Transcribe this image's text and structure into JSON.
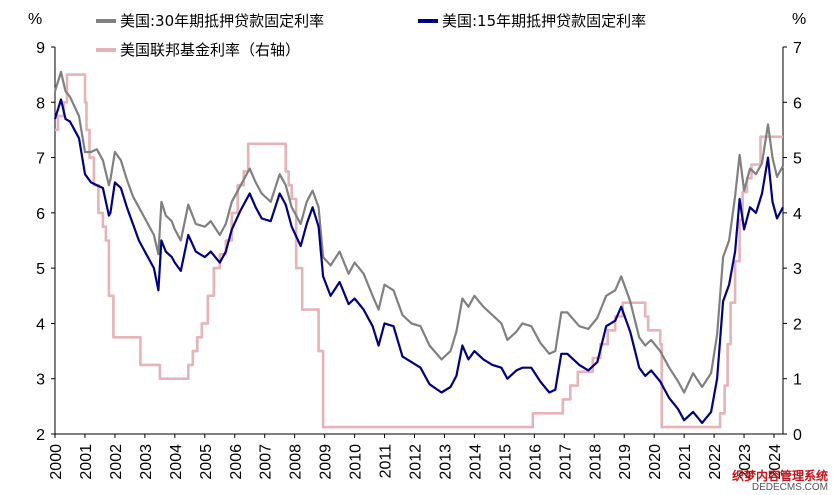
{
  "chart_data": {
    "type": "line",
    "left_unit": "%",
    "right_unit": "%",
    "left_axis": {
      "min": 2,
      "max": 9,
      "ticks": [
        "2",
        "3",
        "4",
        "5",
        "6",
        "7",
        "8",
        "9"
      ]
    },
    "right_axis": {
      "min": 0,
      "max": 7,
      "ticks": [
        "0",
        "1",
        "2",
        "3",
        "4",
        "5",
        "6",
        "7"
      ]
    },
    "x_axis": {
      "min": 2000,
      "max": 2024.3,
      "ticks": [
        "2000",
        "2001",
        "2002",
        "2003",
        "2004",
        "2005",
        "2006",
        "2007",
        "2008",
        "2009",
        "2010",
        "2011",
        "2012",
        "2013",
        "2014",
        "2015",
        "2016",
        "2017",
        "2018",
        "2019",
        "2020",
        "2021",
        "2022",
        "2023",
        "2024"
      ]
    },
    "series": [
      {
        "name": "美国:30年期抵押贷款固定利率",
        "axis": "left",
        "color": "#808080",
        "x": [
          2000.0,
          2000.2,
          2000.35,
          2000.5,
          2000.8,
          2001.0,
          2001.2,
          2001.4,
          2001.6,
          2001.8,
          2001.85,
          2002.0,
          2002.2,
          2002.4,
          2002.6,
          2002.8,
          2003.0,
          2003.3,
          2003.45,
          2003.55,
          2003.7,
          2003.9,
          2004.0,
          2004.2,
          2004.45,
          2004.7,
          2005.0,
          2005.2,
          2005.5,
          2005.7,
          2005.9,
          2006.2,
          2006.5,
          2006.7,
          2006.9,
          2007.2,
          2007.5,
          2007.7,
          2007.9,
          2008.2,
          2008.4,
          2008.6,
          2008.8,
          2008.95,
          2009.2,
          2009.5,
          2009.8,
          2010.0,
          2010.3,
          2010.6,
          2010.8,
          2011.0,
          2011.3,
          2011.6,
          2011.9,
          2012.2,
          2012.5,
          2012.9,
          2013.2,
          2013.4,
          2013.6,
          2013.8,
          2014.0,
          2014.3,
          2014.6,
          2014.9,
          2015.1,
          2015.4,
          2015.6,
          2015.9,
          2016.2,
          2016.5,
          2016.7,
          2016.9,
          2017.1,
          2017.5,
          2017.8,
          2018.1,
          2018.4,
          2018.7,
          2018.9,
          2019.2,
          2019.5,
          2019.7,
          2019.9,
          2020.2,
          2020.5,
          2020.8,
          2021.0,
          2021.3,
          2021.6,
          2021.9,
          2022.1,
          2022.3,
          2022.5,
          2022.7,
          2022.85,
          2023.0,
          2023.2,
          2023.4,
          2023.6,
          2023.8,
          2023.95,
          2024.1,
          2024.3
        ],
        "y": [
          8.2,
          8.55,
          8.2,
          8.1,
          7.75,
          7.1,
          7.1,
          7.15,
          6.95,
          6.5,
          6.6,
          7.1,
          6.95,
          6.6,
          6.3,
          6.1,
          5.9,
          5.6,
          5.25,
          6.2,
          5.95,
          5.85,
          5.7,
          5.5,
          6.15,
          5.8,
          5.75,
          5.85,
          5.6,
          5.8,
          6.2,
          6.5,
          6.8,
          6.55,
          6.35,
          6.2,
          6.7,
          6.5,
          6.1,
          5.8,
          6.2,
          6.4,
          6.1,
          5.2,
          5.05,
          5.3,
          4.9,
          5.1,
          4.9,
          4.5,
          4.25,
          4.7,
          4.6,
          4.15,
          4.0,
          3.95,
          3.6,
          3.35,
          3.5,
          3.85,
          4.45,
          4.3,
          4.5,
          4.3,
          4.15,
          4.0,
          3.7,
          3.85,
          4.0,
          3.95,
          3.65,
          3.45,
          3.5,
          4.2,
          4.2,
          3.95,
          3.9,
          4.1,
          4.5,
          4.6,
          4.85,
          4.4,
          3.75,
          3.6,
          3.7,
          3.5,
          3.2,
          2.95,
          2.75,
          3.1,
          2.85,
          3.1,
          3.8,
          5.2,
          5.5,
          6.3,
          7.05,
          6.4,
          6.8,
          6.7,
          6.9,
          7.6,
          7.0,
          6.65,
          6.85
        ]
      },
      {
        "name": "美国:15年期抵押贷款固定利率",
        "axis": "left",
        "color": "#000080",
        "x": [
          2000.0,
          2000.2,
          2000.35,
          2000.5,
          2000.8,
          2001.0,
          2001.2,
          2001.4,
          2001.6,
          2001.8,
          2001.85,
          2002.0,
          2002.2,
          2002.4,
          2002.6,
          2002.8,
          2003.0,
          2003.3,
          2003.45,
          2003.55,
          2003.7,
          2003.9,
          2004.0,
          2004.2,
          2004.45,
          2004.7,
          2005.0,
          2005.2,
          2005.5,
          2005.7,
          2005.9,
          2006.2,
          2006.5,
          2006.7,
          2006.9,
          2007.2,
          2007.5,
          2007.7,
          2007.9,
          2008.2,
          2008.4,
          2008.6,
          2008.8,
          2008.95,
          2009.2,
          2009.5,
          2009.8,
          2010.0,
          2010.3,
          2010.6,
          2010.8,
          2011.0,
          2011.3,
          2011.6,
          2011.9,
          2012.2,
          2012.5,
          2012.9,
          2013.2,
          2013.4,
          2013.6,
          2013.8,
          2014.0,
          2014.3,
          2014.6,
          2014.9,
          2015.1,
          2015.4,
          2015.6,
          2015.9,
          2016.2,
          2016.5,
          2016.7,
          2016.9,
          2017.1,
          2017.5,
          2017.8,
          2018.1,
          2018.4,
          2018.7,
          2018.9,
          2019.2,
          2019.5,
          2019.7,
          2019.9,
          2020.2,
          2020.5,
          2020.8,
          2021.0,
          2021.3,
          2021.6,
          2021.9,
          2022.1,
          2022.3,
          2022.5,
          2022.7,
          2022.85,
          2023.0,
          2023.2,
          2023.4,
          2023.6,
          2023.8,
          2023.95,
          2024.1,
          2024.3
        ],
        "y": [
          7.7,
          8.05,
          7.7,
          7.65,
          7.35,
          6.7,
          6.55,
          6.5,
          6.45,
          5.95,
          6.0,
          6.55,
          6.45,
          6.1,
          5.8,
          5.5,
          5.3,
          5.0,
          4.6,
          5.5,
          5.3,
          5.2,
          5.1,
          4.95,
          5.6,
          5.3,
          5.2,
          5.3,
          5.1,
          5.3,
          5.7,
          6.05,
          6.35,
          6.1,
          5.9,
          5.85,
          6.35,
          6.15,
          5.75,
          5.4,
          5.8,
          6.1,
          5.75,
          4.85,
          4.5,
          4.75,
          4.35,
          4.45,
          4.25,
          3.95,
          3.6,
          4.0,
          3.95,
          3.4,
          3.3,
          3.2,
          2.9,
          2.75,
          2.85,
          3.05,
          3.6,
          3.35,
          3.5,
          3.35,
          3.25,
          3.2,
          3.0,
          3.15,
          3.2,
          3.2,
          2.95,
          2.75,
          2.8,
          3.45,
          3.45,
          3.25,
          3.15,
          3.3,
          3.95,
          4.05,
          4.3,
          3.85,
          3.2,
          3.05,
          3.15,
          2.95,
          2.65,
          2.45,
          2.25,
          2.4,
          2.2,
          2.4,
          3.0,
          4.4,
          4.7,
          5.3,
          6.25,
          5.7,
          6.1,
          6.0,
          6.35,
          7.0,
          6.2,
          5.9,
          6.1
        ]
      },
      {
        "name": "美国联邦基金利率（右轴）",
        "axis": "right",
        "color": "#e6b3b8",
        "x": [
          2000.0,
          2000.1,
          2000.2,
          2000.3,
          2000.4,
          2001.0,
          2001.05,
          2001.15,
          2001.3,
          2001.45,
          2001.6,
          2001.7,
          2001.8,
          2001.95,
          2002.85,
          2003.5,
          2004.45,
          2004.6,
          2004.75,
          2004.9,
          2005.1,
          2005.3,
          2005.5,
          2005.7,
          2005.9,
          2006.1,
          2006.3,
          2006.45,
          2007.7,
          2007.8,
          2007.9,
          2008.05,
          2008.25,
          2008.8,
          2008.95,
          2015.95,
          2016.95,
          2017.2,
          2017.45,
          2017.95,
          2018.2,
          2018.45,
          2018.7,
          2018.95,
          2019.55,
          2019.7,
          2019.8,
          2020.2,
          2020.25,
          2022.2,
          2022.35,
          2022.45,
          2022.55,
          2022.7,
          2022.85,
          2022.95,
          2023.1,
          2023.25,
          2023.55,
          2024.3
        ],
        "y": [
          5.5,
          5.75,
          5.75,
          6.0,
          6.5,
          6.0,
          5.5,
          5.0,
          4.5,
          4.0,
          3.75,
          3.5,
          2.5,
          1.75,
          1.25,
          1.0,
          1.25,
          1.5,
          1.75,
          2.0,
          2.5,
          3.0,
          3.25,
          3.5,
          4.0,
          4.5,
          4.75,
          5.25,
          4.75,
          4.5,
          4.25,
          3.0,
          2.25,
          1.5,
          0.125,
          0.375,
          0.625,
          0.875,
          1.125,
          1.375,
          1.625,
          1.875,
          2.125,
          2.375,
          2.375,
          2.125,
          1.875,
          1.625,
          0.125,
          0.375,
          0.875,
          1.625,
          2.375,
          3.125,
          3.875,
          4.375,
          4.625,
          4.875,
          5.375,
          5.375
        ]
      }
    ]
  },
  "watermark": {
    "cn": "织梦内容管理系统",
    "en": "DEDECMS.COM"
  }
}
